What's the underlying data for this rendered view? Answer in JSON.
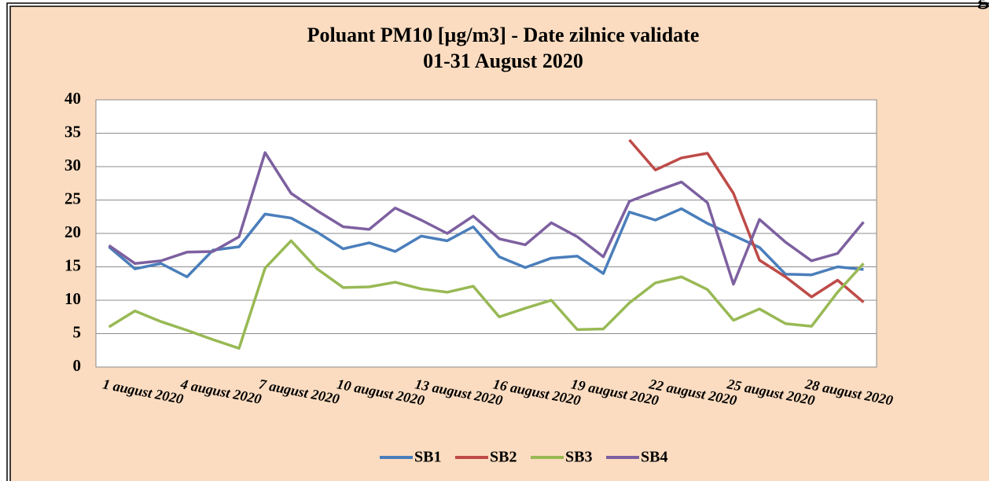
{
  "header_fragment": "g",
  "chart_data": {
    "type": "line",
    "title": "Poluant PM10 [µg/m3] - Date zilnice validate",
    "subtitle": "01-31 August 2020",
    "categories": [
      "1 august 2020",
      null,
      null,
      "4 august 2020",
      null,
      null,
      "7 august 2020",
      null,
      null,
      "10 august 2020",
      null,
      null,
      "13 august 2020",
      null,
      null,
      "16 august 2020",
      null,
      null,
      "19 august 2020",
      null,
      null,
      "22 august 2020",
      null,
      null,
      "25 august 2020",
      null,
      null,
      "28 august 2020",
      null,
      null
    ],
    "series": [
      {
        "name": "SB1",
        "color": "#4a7ebb",
        "values": [
          18,
          14.7,
          15.5,
          13.5,
          17.5,
          18,
          22.9,
          22.3,
          20.2,
          17.7,
          18.6,
          17.3,
          19.6,
          18.9,
          21,
          16.5,
          14.9,
          16.3,
          16.6,
          14,
          23.2,
          22,
          23.7,
          21.5,
          19.7,
          17.9,
          13.9,
          13.8,
          15,
          14.6
        ]
      },
      {
        "name": "SB2",
        "color": "#be4b48",
        "values": [
          null,
          null,
          null,
          null,
          null,
          null,
          null,
          null,
          null,
          null,
          null,
          null,
          null,
          null,
          null,
          null,
          null,
          null,
          null,
          null,
          34,
          29.5,
          31.3,
          32,
          26,
          16,
          13.5,
          10.5,
          13,
          9.7
        ]
      },
      {
        "name": "SB3",
        "color": "#98b954",
        "values": [
          6,
          8.4,
          6.8,
          5.5,
          4.1,
          2.8,
          14.8,
          18.9,
          14.7,
          11.9,
          12,
          12.7,
          11.7,
          11.2,
          12.1,
          7.5,
          8.8,
          10,
          5.6,
          5.7,
          9.6,
          12.6,
          13.5,
          11.6,
          7,
          8.7,
          6.5,
          6.1,
          11.2,
          15.5
        ]
      },
      {
        "name": "SB4",
        "color": "#7d60a0",
        "values": [
          18.2,
          15.5,
          15.9,
          17.2,
          17.3,
          19.5,
          32.1,
          26,
          23.4,
          21,
          20.6,
          23.8,
          22,
          20,
          22.6,
          19.2,
          18.3,
          21.6,
          19.5,
          16.5,
          24.8,
          26.3,
          27.7,
          24.6,
          12.4,
          22.1,
          18.7,
          15.9,
          17,
          21.7
        ]
      }
    ],
    "ylim": [
      0,
      40
    ],
    "yticks": [
      0,
      5,
      10,
      15,
      20,
      25,
      30,
      35,
      40
    ],
    "grid": true,
    "legend": "bottom"
  }
}
